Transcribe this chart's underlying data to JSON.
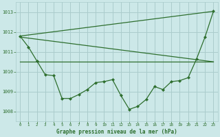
{
  "title": "Graphe pression niveau de la mer (hPa)",
  "bg_color": "#cce8e8",
  "grid_color": "#aacccc",
  "line_color": "#2d6e2d",
  "xlim": [
    -0.5,
    23.5
  ],
  "ylim": [
    1007.5,
    1013.5
  ],
  "yticks": [
    1008,
    1009,
    1010,
    1011,
    1012,
    1013
  ],
  "xticks": [
    0,
    1,
    2,
    3,
    4,
    5,
    6,
    7,
    8,
    9,
    10,
    11,
    12,
    13,
    14,
    15,
    16,
    17,
    18,
    19,
    20,
    21,
    22,
    23
  ],
  "line1": {
    "x": [
      0,
      23
    ],
    "y": [
      1011.8,
      1013.05
    ]
  },
  "line2": {
    "x": [
      0,
      23
    ],
    "y": [
      1010.5,
      1010.5
    ]
  },
  "line3": {
    "x": [
      0,
      23
    ],
    "y": [
      1011.75,
      1010.5
    ]
  },
  "line4_x": [
    0,
    1,
    2,
    3,
    4,
    5,
    6,
    7,
    8,
    9,
    10,
    11,
    12,
    13,
    14,
    15,
    16,
    17,
    18,
    19,
    20,
    21,
    22,
    23
  ],
  "line4_y": [
    1011.8,
    1011.25,
    1010.55,
    1009.85,
    1009.8,
    1008.65,
    1008.65,
    1008.85,
    1009.1,
    1009.45,
    1009.5,
    1009.6,
    1008.8,
    1008.1,
    1008.25,
    1008.6,
    1009.25,
    1009.1,
    1009.5,
    1009.55,
    1009.7,
    1010.65,
    1011.75,
    1013.05
  ]
}
